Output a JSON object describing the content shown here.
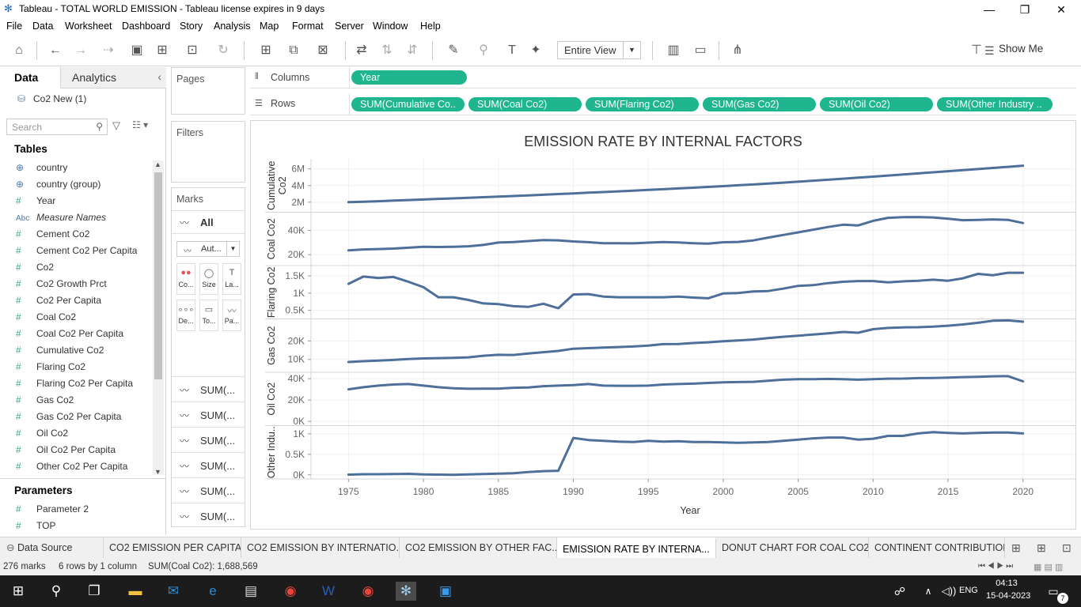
{
  "window": {
    "title": "Tableau - TOTAL WORLD EMISSION - Tableau license expires in 9 days",
    "minimize": "—",
    "restore": "❐",
    "close": "✕"
  },
  "menu": [
    "File",
    "Data",
    "Worksheet",
    "Dashboard",
    "Story",
    "Analysis",
    "Map",
    "Format",
    "Server",
    "Window",
    "Help"
  ],
  "toolbar": {
    "view_select": "Entire View",
    "show_me": "Show Me"
  },
  "left": {
    "tab_data": "Data",
    "tab_analytics": "Analytics",
    "datasource": "Co2 New (1)",
    "search_placeholder": "Search",
    "tables_header": "Tables",
    "parameters_header": "Parameters",
    "fields": [
      {
        "icon": "⊕",
        "name": "country",
        "italic": false
      },
      {
        "icon": "⊕",
        "name": "country (group)",
        "italic": false
      },
      {
        "icon": "#",
        "name": "Year",
        "italic": false
      },
      {
        "icon": "Abc",
        "name": "Measure Names",
        "italic": true
      },
      {
        "icon": "#",
        "name": "Cement Co2",
        "italic": false
      },
      {
        "icon": "#",
        "name": "Cement Co2 Per Capita",
        "italic": false
      },
      {
        "icon": "#",
        "name": "Co2",
        "italic": false
      },
      {
        "icon": "#",
        "name": "Co2 Growth Prct",
        "italic": false
      },
      {
        "icon": "#",
        "name": "Co2 Per Capita",
        "italic": false
      },
      {
        "icon": "#",
        "name": "Coal Co2",
        "italic": false
      },
      {
        "icon": "#",
        "name": "Coal Co2 Per Capita",
        "italic": false
      },
      {
        "icon": "#",
        "name": "Cumulative Co2",
        "italic": false
      },
      {
        "icon": "#",
        "name": "Flaring Co2",
        "italic": false
      },
      {
        "icon": "#",
        "name": "Flaring Co2 Per Capita",
        "italic": false
      },
      {
        "icon": "#",
        "name": "Gas Co2",
        "italic": false
      },
      {
        "icon": "#",
        "name": "Gas Co2 Per Capita",
        "italic": false
      },
      {
        "icon": "#",
        "name": "Oil Co2",
        "italic": false
      },
      {
        "icon": "#",
        "name": "Oil Co2 Per Capita",
        "italic": false
      },
      {
        "icon": "#",
        "name": "Other Co2 Per Capita",
        "italic": false
      }
    ],
    "parameters": [
      {
        "icon": "#",
        "name": "Parameter 2"
      },
      {
        "icon": "#",
        "name": "TOP"
      }
    ]
  },
  "cards": {
    "pages": "Pages",
    "filters": "Filters",
    "marks": "Marks",
    "marks_all": "All",
    "mark_type": "Aut...",
    "mark_buttons": [
      "Co...",
      "Size",
      "La...",
      "De...",
      "To...",
      "Pa..."
    ],
    "sum_rows": [
      "SUM(...",
      "SUM(...",
      "SUM(...",
      "SUM(...",
      "SUM(...",
      "SUM(..."
    ]
  },
  "shelves": {
    "columns_label": "Columns",
    "rows_label": "Rows",
    "columns": [
      "Year"
    ],
    "rows": [
      "SUM(Cumulative Co..",
      "SUM(Coal Co2)",
      "SUM(Flaring Co2)",
      "SUM(Gas Co2)",
      "SUM(Oil Co2)",
      "SUM(Other Industry .."
    ]
  },
  "bottom_tabs": [
    {
      "label": "Data Source",
      "active": false
    },
    {
      "label": "CO2 EMISSION PER CAPITA",
      "active": false
    },
    {
      "label": "CO2 EMISSION BY INTERNATIO...",
      "active": false
    },
    {
      "label": "CO2 EMISSION BY OTHER FAC...",
      "active": false
    },
    {
      "label": "EMISSION RATE BY INTERNA...",
      "active": true
    },
    {
      "label": "DONUT CHART FOR COAL CO2",
      "active": false
    },
    {
      "label": "CONTINENT CONTRIBUTION",
      "active": false
    }
  ],
  "status": {
    "marks": "276 marks",
    "rows": "6 rows by 1 column",
    "sum": "SUM(Coal Co2): 1,688,569"
  },
  "taskbar": {
    "lang": "ENG",
    "time": "04:13",
    "date": "15-04-2023",
    "notif": "7"
  },
  "colors": {
    "line": "#4e6f99",
    "pill": "#1fb58f"
  },
  "chart_data": {
    "type": "line",
    "title": "EMISSION RATE BY INTERNAL FACTORS",
    "xlabel": "Year",
    "x": [
      1975,
      1976,
      1977,
      1978,
      1979,
      1980,
      1981,
      1982,
      1983,
      1984,
      1985,
      1986,
      1987,
      1988,
      1989,
      1990,
      1991,
      1992,
      1993,
      1994,
      1995,
      1996,
      1997,
      1998,
      1999,
      2000,
      2001,
      2002,
      2003,
      2004,
      2005,
      2006,
      2007,
      2008,
      2009,
      2010,
      2011,
      2012,
      2013,
      2014,
      2015,
      2016,
      2017,
      2018,
      2019,
      2020
    ],
    "xticks": [
      1975,
      1980,
      1985,
      1990,
      1995,
      2000,
      2005,
      2010,
      2015,
      2020
    ],
    "panels": [
      {
        "name": "Cumulative Co2",
        "axis_label": "Cumulative Co2",
        "ticks": [
          {
            "v": 2000000,
            "l": "2M"
          },
          {
            "v": 4000000,
            "l": "4M"
          },
          {
            "v": 6000000,
            "l": "6M"
          }
        ],
        "ylim": [
          800000,
          7200000
        ],
        "values": [
          2000000,
          2060000,
          2120000,
          2190000,
          2260000,
          2330000,
          2400000,
          2460000,
          2530000,
          2600000,
          2670000,
          2740000,
          2820000,
          2900000,
          2980000,
          3060000,
          3140000,
          3220000,
          3300000,
          3390000,
          3470000,
          3560000,
          3650000,
          3740000,
          3830000,
          3930000,
          4030000,
          4130000,
          4240000,
          4350000,
          4460000,
          4580000,
          4700000,
          4820000,
          4940000,
          5070000,
          5200000,
          5330000,
          5460000,
          5590000,
          5720000,
          5850000,
          5980000,
          6110000,
          6240000,
          6380000
        ]
      },
      {
        "name": "Coal Co2",
        "axis_label": "Coal Co2",
        "ticks": [
          {
            "v": 20000,
            "l": "20K"
          },
          {
            "v": 40000,
            "l": "40K"
          }
        ],
        "ylim": [
          11000,
          55000
        ],
        "values": [
          23500,
          24300,
          24600,
          25000,
          25700,
          26500,
          26300,
          26500,
          26900,
          28000,
          30000,
          30400,
          31200,
          32000,
          31800,
          30900,
          30300,
          29400,
          29400,
          29300,
          29900,
          30400,
          30100,
          29400,
          29100,
          30200,
          30500,
          31700,
          34100,
          36200,
          38400,
          40600,
          42800,
          44700,
          44100,
          47900,
          50400,
          50900,
          51000,
          50700,
          49600,
          48400,
          48600,
          49100,
          48700,
          46100
        ]
      },
      {
        "name": "Flaring Co2",
        "axis_label": "Flaring Co2",
        "ticks": [
          {
            "v": 500,
            "l": "0.5K"
          },
          {
            "v": 1000,
            "l": "1K"
          },
          {
            "v": 1500,
            "l": "1.5K"
          }
        ],
        "ylim": [
          250,
          1800
        ],
        "values": [
          1270,
          1480,
          1440,
          1470,
          1330,
          1170,
          880,
          880,
          800,
          700,
          680,
          620,
          600,
          690,
          560,
          960,
          970,
          900,
          880,
          880,
          880,
          880,
          900,
          870,
          850,
          990,
          1000,
          1050,
          1060,
          1130,
          1210,
          1230,
          1290,
          1330,
          1350,
          1350,
          1310,
          1340,
          1360,
          1390,
          1360,
          1430,
          1560,
          1520,
          1590,
          1590
        ]
      },
      {
        "name": "Gas Co2",
        "axis_label": "Gas Co2",
        "ticks": [
          {
            "v": 10000,
            "l": "10K"
          },
          {
            "v": 20000,
            "l": "20K"
          }
        ],
        "ylim": [
          3000,
          32000
        ],
        "values": [
          8600,
          9000,
          9300,
          9700,
          10200,
          10500,
          10700,
          10800,
          11100,
          12000,
          12500,
          12400,
          13200,
          13900,
          14600,
          15800,
          16100,
          16400,
          16700,
          17000,
          17500,
          18300,
          18400,
          18900,
          19300,
          19900,
          20300,
          20800,
          21600,
          22300,
          22900,
          23500,
          24200,
          24900,
          24500,
          26400,
          27100,
          27400,
          27500,
          27800,
          28300,
          29000,
          29900,
          31000,
          31200,
          30500
        ]
      },
      {
        "name": "Oil Co2",
        "axis_label": "Oil Co2",
        "ticks": [
          {
            "v": 0,
            "l": "0K"
          },
          {
            "v": 20000,
            "l": "20K"
          },
          {
            "v": 40000,
            "l": "40K"
          }
        ],
        "ylim": [
          -4000,
          46000
        ],
        "values": [
          30000,
          32000,
          33500,
          34500,
          35000,
          33500,
          32000,
          31000,
          30500,
          30700,
          30700,
          31500,
          31800,
          33000,
          33500,
          34000,
          35000,
          33500,
          33300,
          33300,
          33500,
          34500,
          35000,
          35300,
          36000,
          36500,
          36800,
          37000,
          38000,
          39000,
          39500,
          39500,
          39800,
          39500,
          39000,
          39500,
          40000,
          40100,
          40500,
          40700,
          41000,
          41500,
          41800,
          42200,
          42400,
          37500
        ]
      },
      {
        "name": "Other Industry Co2",
        "axis_label": "Other Indu..",
        "ticks": [
          {
            "v": 0,
            "l": "0K"
          },
          {
            "v": 500,
            "l": "0.5K"
          },
          {
            "v": 1000,
            "l": "1K"
          }
        ],
        "ylim": [
          -100,
          1200
        ],
        "values": [
          5,
          15,
          15,
          20,
          25,
          10,
          5,
          0,
          10,
          20,
          30,
          40,
          70,
          90,
          100,
          900,
          850,
          830,
          810,
          800,
          830,
          810,
          820,
          800,
          800,
          790,
          780,
          790,
          800,
          830,
          860,
          890,
          910,
          910,
          860,
          880,
          950,
          950,
          1010,
          1040,
          1020,
          1010,
          1020,
          1030,
          1030,
          1010
        ]
      }
    ]
  }
}
